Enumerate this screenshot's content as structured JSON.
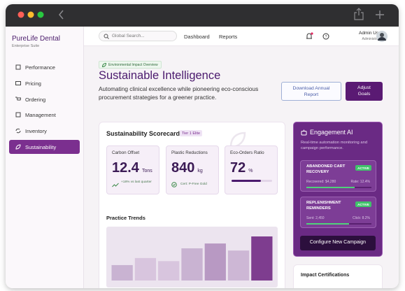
{
  "brand": {
    "name": "PureLife Dental",
    "tagline": "Enterprise Suite"
  },
  "nav": [
    "Performance",
    "Pricing",
    "Ordering",
    "Management",
    "Inventory",
    "Sustainability"
  ],
  "topbar": {
    "search": "Global Search...",
    "links": [
      "Dashboard",
      "Reports"
    ],
    "user": "Admin User",
    "role": "Administrator"
  },
  "header": {
    "badge": "Environmental Impact Overview",
    "title": "Sustainable Intelligence",
    "subtitle": "Automating clinical excellence while pioneering eco-conscious procurement strategies for a greener practice.",
    "buttons": [
      "Download Annual Report",
      "Adjust Goals"
    ]
  },
  "scorecard": {
    "title": "Sustainability Scorecard",
    "tag": "Tier 1 Elite",
    "metrics": [
      {
        "label": "Carbon Offset",
        "value": 12.4,
        "unit": "Tons",
        "note": "+18% vs last quarter"
      },
      {
        "label": "Plastic Reductions",
        "value": 840,
        "unit": "kg",
        "note": "Cert: P-Free Gold"
      },
      {
        "label": "Eco-Orders Ratio",
        "value": 72,
        "unit": "%"
      }
    ]
  },
  "trends": {
    "title": "Practice Trends",
    "values": [
      35,
      51,
      44,
      73,
      84,
      68,
      100
    ],
    "ylim": [
      0,
      100
    ],
    "colors": [
      "#c9b3d2",
      "#d8c5de",
      "#d8c5de",
      "#c9b3d2",
      "#b899c3",
      "#cdb7d5",
      "#7e3d8f"
    ]
  },
  "engagement": {
    "title": "Engagement AI",
    "description": "Real-time automation monitoring and campaign performance.",
    "campaigns": [
      {
        "title": "ABANDONED CART RECOVERY",
        "status": "ACTIVE",
        "left": "Recovered: $4,280",
        "right": "Rate: 12.4%",
        "progress": 74
      },
      {
        "title": "REPLENISHMENT REMINDERS",
        "status": "ACTIVE",
        "left": "Sent: 2,450",
        "right": "Click: 8.2%",
        "progress": 66
      }
    ],
    "button": "Configure New Campaign"
  },
  "certifications": {
    "title": "Impact Certifications"
  }
}
